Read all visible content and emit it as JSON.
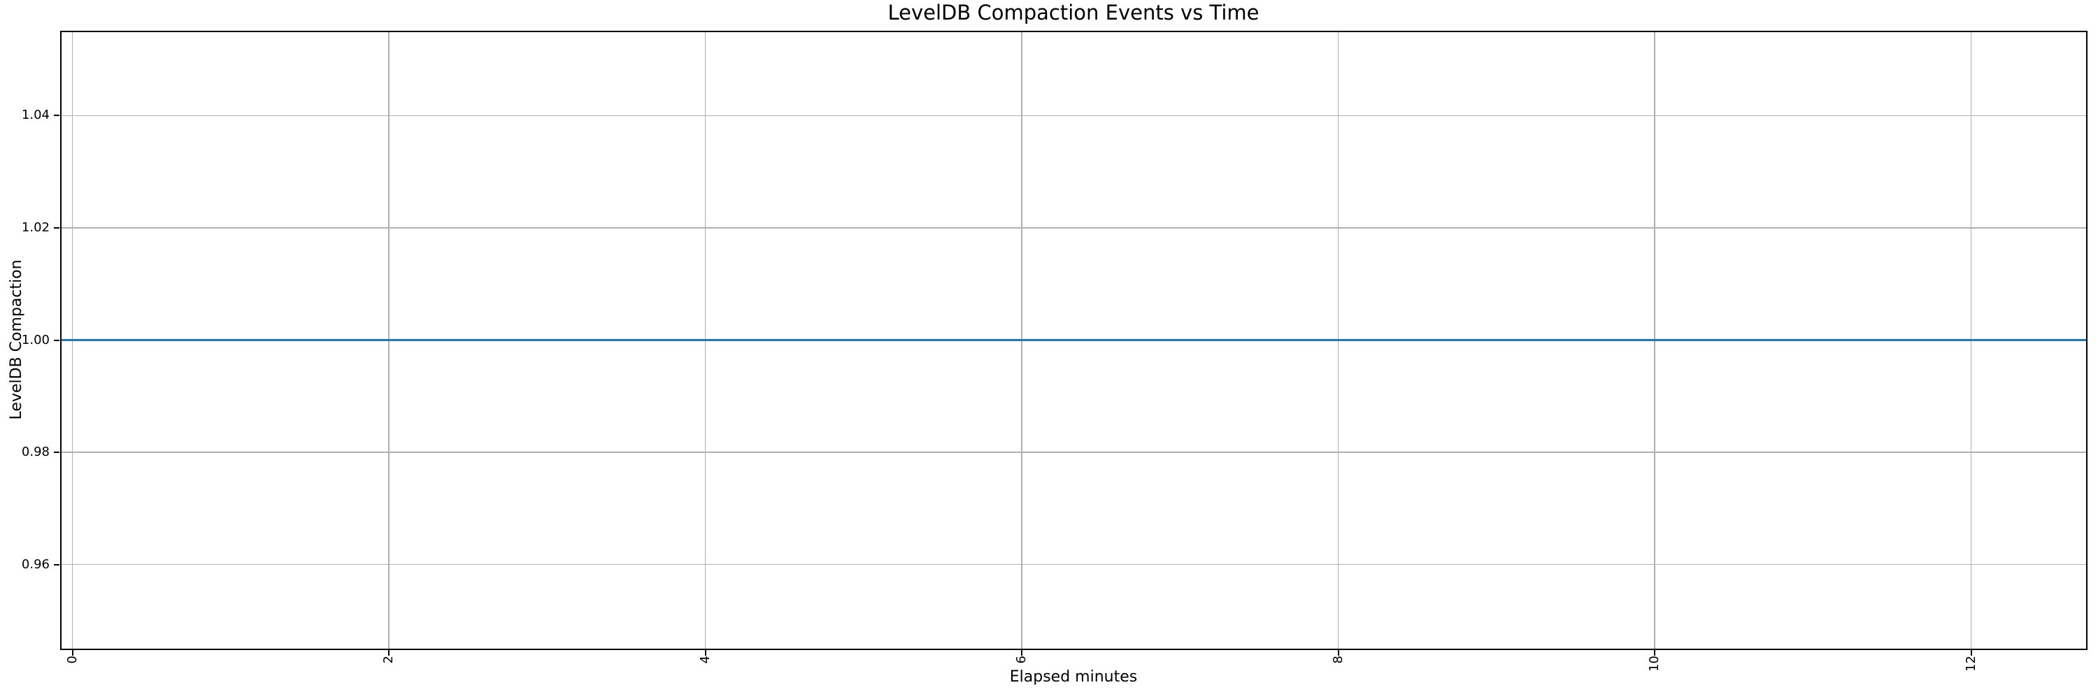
{
  "figure": {
    "background": "#ffffff"
  },
  "chart_data": {
    "type": "line",
    "title": "LevelDB Compaction Events vs Time",
    "xlabel": "Elapsed minutes",
    "ylabel": "LevelDB Compaction",
    "xlim": [
      -0.073,
      12.727
    ],
    "ylim": [
      0.945,
      1.055
    ],
    "x_ticks": [
      0,
      2,
      4,
      6,
      8,
      10,
      12
    ],
    "x_tick_labels": [
      "0",
      "2",
      "4",
      "6",
      "8",
      "10",
      "12"
    ],
    "x_tick_rotation_deg": 90,
    "y_ticks": [
      0.96,
      0.98,
      1.0,
      1.02,
      1.04
    ],
    "y_tick_labels": [
      "0.96",
      "0.98",
      "1.00",
      "1.02",
      "1.04"
    ],
    "grid": true,
    "legend_visible": false,
    "series": [
      {
        "name": "LevelDB Compaction",
        "color": "#1f77b4",
        "y_constant": 1.0,
        "points": [
          [
            -0.073,
            1.0
          ],
          [
            12.727,
            1.0
          ]
        ]
      }
    ],
    "style": {
      "grid_color": "#b0b0b0",
      "spine_color": "#000000",
      "text_color": "#000000",
      "background": "#ffffff"
    }
  }
}
